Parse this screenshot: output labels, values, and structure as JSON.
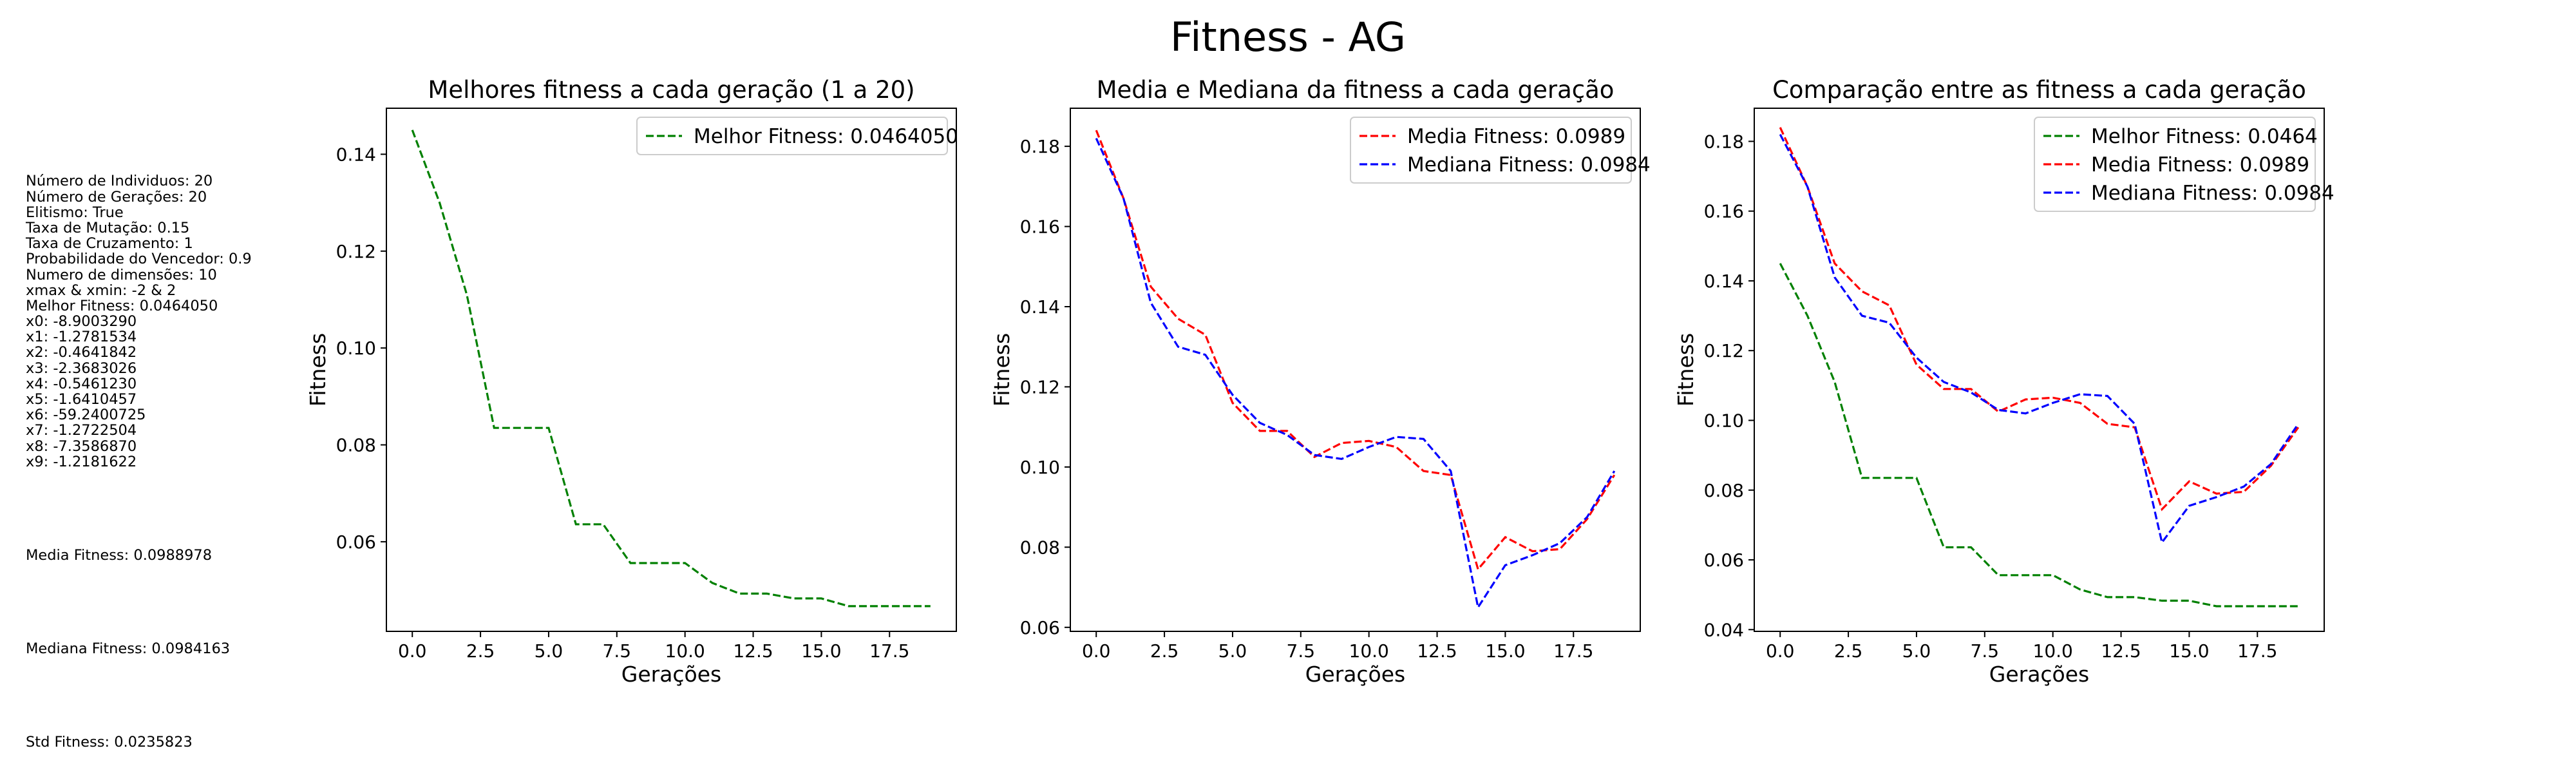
{
  "suptitle": "Fitness - AG",
  "info": {
    "params": [
      "Número de Individuos: 20",
      "Número de Gerações: 20",
      "Elitismo: True",
      "Taxa de Mutação: 0.15",
      "Taxa de Cruzamento: 1",
      "Probabilidade do Vencedor: 0.9",
      "Numero de dimensões: 10",
      "xmax & xmin: -2 & 2",
      "Melhor Fitness: 0.0464050",
      "x0: -8.9003290",
      "x1: -1.2781534",
      "x2: -0.4641842",
      "x3: -2.3683026",
      "x4: -0.5461230",
      "x5: -1.6410457",
      "x6: -59.2400725",
      "x7: -1.2722504",
      "x8: -7.3586870",
      "x9: -1.2181622"
    ],
    "media": "Media Fitness: 0.0988978",
    "mediana": "Mediana Fitness: 0.0984163",
    "std": "Std Fitness: 0.0235823"
  },
  "chart_data": [
    {
      "type": "line",
      "title": "Melhores fitness a cada geração (1 a 20)",
      "xlabel": "Gerações",
      "ylabel": "Fitness",
      "xlim": [
        -0.95,
        19.95
      ],
      "ylim": [
        0.0415,
        0.1495
      ],
      "xticks": [
        0.0,
        2.5,
        5.0,
        7.5,
        10.0,
        12.5,
        15.0,
        17.5
      ],
      "xtick_labels": [
        "0.0",
        "2.5",
        "5.0",
        "7.5",
        "10.0",
        "12.5",
        "15.0",
        "17.5"
      ],
      "yticks": [
        0.06,
        0.08,
        0.1,
        0.12,
        0.14
      ],
      "ytick_labels": [
        "0.06",
        "0.08",
        "0.10",
        "0.12",
        "0.14"
      ],
      "legend_position": "top-right",
      "grid": false,
      "series": [
        {
          "name": "Melhor Fitness: 0.0464050",
          "color": "#008000",
          "x": [
            0,
            1,
            2,
            3,
            4,
            5,
            6,
            7,
            8,
            9,
            10,
            11,
            12,
            13,
            14,
            15,
            16,
            17,
            18,
            19
          ],
          "y": [
            0.145,
            0.13,
            0.111,
            0.0835,
            0.0835,
            0.0835,
            0.0636,
            0.0636,
            0.0556,
            0.0556,
            0.0556,
            0.0515,
            0.0493,
            0.0493,
            0.0483,
            0.0483,
            0.0467,
            0.0467,
            0.0467,
            0.0467
          ]
        }
      ]
    },
    {
      "type": "line",
      "title": "Media e Mediana da fitness a cada geração",
      "xlabel": "Gerações",
      "ylabel": "Fitness",
      "xlim": [
        -0.95,
        19.95
      ],
      "ylim": [
        0.059,
        0.1895
      ],
      "xticks": [
        0.0,
        2.5,
        5.0,
        7.5,
        10.0,
        12.5,
        15.0,
        17.5
      ],
      "xtick_labels": [
        "0.0",
        "2.5",
        "5.0",
        "7.5",
        "10.0",
        "12.5",
        "15.0",
        "17.5"
      ],
      "yticks": [
        0.06,
        0.08,
        0.1,
        0.12,
        0.14,
        0.16,
        0.18
      ],
      "ytick_labels": [
        "0.06",
        "0.08",
        "0.10",
        "0.12",
        "0.14",
        "0.16",
        "0.18"
      ],
      "legend_position": "top-right",
      "grid": false,
      "series": [
        {
          "name": "Media Fitness: 0.0989",
          "color": "#ff0000",
          "x": [
            0,
            1,
            2,
            3,
            4,
            5,
            6,
            7,
            8,
            9,
            10,
            11,
            12,
            13,
            14,
            15,
            16,
            17,
            18,
            19
          ],
          "y": [
            0.184,
            0.167,
            0.145,
            0.137,
            0.133,
            0.116,
            0.109,
            0.109,
            0.1025,
            0.106,
            0.1065,
            0.105,
            0.099,
            0.098,
            0.0745,
            0.0825,
            0.079,
            0.0795,
            0.087,
            0.098
          ]
        },
        {
          "name": "Mediana Fitness: 0.0984",
          "color": "#0000ff",
          "x": [
            0,
            1,
            2,
            3,
            4,
            5,
            6,
            7,
            8,
            9,
            10,
            11,
            12,
            13,
            14,
            15,
            16,
            17,
            18,
            19
          ],
          "y": [
            0.182,
            0.167,
            0.141,
            0.13,
            0.128,
            0.118,
            0.111,
            0.108,
            0.103,
            0.102,
            0.105,
            0.1075,
            0.107,
            0.099,
            0.065,
            0.0755,
            0.078,
            0.081,
            0.0875,
            0.099
          ]
        }
      ]
    },
    {
      "type": "line",
      "title": "Comparação entre as fitness a cada geração",
      "xlabel": "Gerações",
      "ylabel": "Fitness",
      "xlim": [
        -0.95,
        19.95
      ],
      "ylim": [
        0.0395,
        0.1895
      ],
      "xticks": [
        0.0,
        2.5,
        5.0,
        7.5,
        10.0,
        12.5,
        15.0,
        17.5
      ],
      "xtick_labels": [
        "0.0",
        "2.5",
        "5.0",
        "7.5",
        "10.0",
        "12.5",
        "15.0",
        "17.5"
      ],
      "yticks": [
        0.04,
        0.06,
        0.08,
        0.1,
        0.12,
        0.14,
        0.16,
        0.18
      ],
      "ytick_labels": [
        "0.04",
        "0.06",
        "0.08",
        "0.10",
        "0.12",
        "0.14",
        "0.16",
        "0.18"
      ],
      "legend_position": "top-right",
      "grid": false,
      "series": [
        {
          "name": "Melhor Fitness: 0.0464",
          "color": "#008000",
          "x": [
            0,
            1,
            2,
            3,
            4,
            5,
            6,
            7,
            8,
            9,
            10,
            11,
            12,
            13,
            14,
            15,
            16,
            17,
            18,
            19
          ],
          "y": [
            0.145,
            0.13,
            0.111,
            0.0835,
            0.0835,
            0.0835,
            0.0636,
            0.0636,
            0.0556,
            0.0556,
            0.0556,
            0.0515,
            0.0493,
            0.0493,
            0.0483,
            0.0483,
            0.0467,
            0.0467,
            0.0467,
            0.0467
          ]
        },
        {
          "name": "Media Fitness: 0.0989",
          "color": "#ff0000",
          "x": [
            0,
            1,
            2,
            3,
            4,
            5,
            6,
            7,
            8,
            9,
            10,
            11,
            12,
            13,
            14,
            15,
            16,
            17,
            18,
            19
          ],
          "y": [
            0.184,
            0.167,
            0.145,
            0.137,
            0.133,
            0.116,
            0.109,
            0.109,
            0.1025,
            0.106,
            0.1065,
            0.105,
            0.099,
            0.098,
            0.0745,
            0.0825,
            0.079,
            0.0795,
            0.087,
            0.098
          ]
        },
        {
          "name": "Mediana Fitness: 0.0984",
          "color": "#0000ff",
          "x": [
            0,
            1,
            2,
            3,
            4,
            5,
            6,
            7,
            8,
            9,
            10,
            11,
            12,
            13,
            14,
            15,
            16,
            17,
            18,
            19
          ],
          "y": [
            0.182,
            0.167,
            0.141,
            0.13,
            0.128,
            0.118,
            0.111,
            0.108,
            0.103,
            0.102,
            0.105,
            0.1075,
            0.107,
            0.099,
            0.065,
            0.0755,
            0.078,
            0.081,
            0.0875,
            0.099
          ]
        }
      ]
    }
  ]
}
